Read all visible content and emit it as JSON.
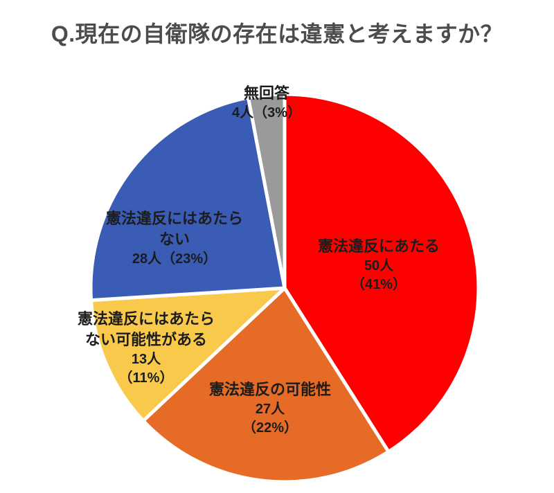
{
  "title": "Q.現在の自衛隊の存在は違憲と考えますか？",
  "chart_data": {
    "type": "pie",
    "title": "Q.現在の自衛隊の存在は違憲と考えますか？",
    "unit": "人",
    "start_angle_deg": 0,
    "direction": "clockwise",
    "legend": "none",
    "labels_on_slices": true,
    "slice_border_color": "#FFFFFF",
    "slices": [
      {
        "label": "憲法違反にあたる",
        "count": 50,
        "percent": 41,
        "color": "#FF0000"
      },
      {
        "label": "憲法違反の可能性",
        "count": 27,
        "percent": 22,
        "color": "#E56B26"
      },
      {
        "label": "憲法違反にはあたらない可能性がある",
        "count": 13,
        "percent": 11,
        "color": "#F9C94C"
      },
      {
        "label": "憲法違反にはあたらない",
        "count": 28,
        "percent": 23,
        "color": "#3A5CB4"
      },
      {
        "label": "無回答",
        "count": 4,
        "percent": 3,
        "color": "#9A9A9A"
      }
    ]
  },
  "labels": {
    "unconstitutional": {
      "lines": [
        "憲法違反にあたる",
        "50人",
        "（41%）"
      ]
    },
    "possibly_unconstitutional": {
      "lines": [
        "憲法違反の可能性",
        "27人",
        "（22%）"
      ]
    },
    "possibly_not_unconstitutional": {
      "lines": [
        "憲法違反にはあたら",
        "ない可能性がある",
        "13人",
        "（11%）"
      ]
    },
    "not_unconstitutional": {
      "lines": [
        "憲法違反にはあたら",
        "ない",
        "28人（23%）"
      ]
    },
    "no_answer": {
      "lines": [
        "無回答",
        "4人（3%）"
      ]
    }
  }
}
